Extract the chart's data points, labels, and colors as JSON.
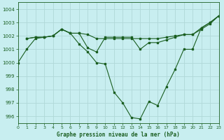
{
  "title": "Graphe pression niveau de la mer (hPa)",
  "background_color": "#c8eef0",
  "grid_color": "#b0d8d8",
  "line_color": "#1a5e20",
  "xlim": [
    0,
    23
  ],
  "ylim": [
    995.5,
    1004.5
  ],
  "yticks": [
    996,
    997,
    998,
    999,
    1000,
    1001,
    1002,
    1003,
    1004
  ],
  "xticks": [
    0,
    1,
    2,
    3,
    4,
    5,
    6,
    7,
    8,
    9,
    10,
    11,
    12,
    13,
    14,
    15,
    16,
    17,
    18,
    19,
    20,
    21,
    22,
    23
  ],
  "series1": {
    "x": [
      0,
      1,
      2,
      3,
      4,
      5,
      6,
      7,
      8,
      9,
      10,
      11,
      12,
      13,
      14,
      15,
      16,
      17,
      18,
      19,
      20,
      21,
      22,
      23
    ],
    "y": [
      1000.0,
      1001.0,
      1001.8,
      1001.9,
      1002.0,
      1002.5,
      1002.2,
      1001.4,
      1000.8,
      1000.0,
      999.9,
      997.8,
      997.0,
      995.9,
      995.8,
      997.1,
      996.8,
      998.2,
      999.5,
      1001.0,
      1001.0,
      1002.6,
      1003.0,
      1003.5
    ]
  },
  "series2": {
    "x": [
      1,
      2,
      3,
      4,
      5,
      6,
      7,
      8,
      9,
      10,
      11,
      12,
      13,
      14,
      15,
      16,
      17,
      18,
      19,
      20,
      21,
      22,
      23
    ],
    "y": [
      1001.8,
      1001.9,
      1001.9,
      1002.0,
      1002.5,
      1002.2,
      1002.2,
      1002.1,
      1001.8,
      1001.8,
      1001.8,
      1001.8,
      1001.8,
      1001.8,
      1001.8,
      1001.8,
      1001.9,
      1002.0,
      1002.1,
      1002.1,
      1002.6,
      1003.0,
      1003.5
    ]
  },
  "series3": {
    "x": [
      1,
      2,
      3,
      4,
      5,
      6,
      7,
      8,
      9,
      10,
      11,
      12,
      13,
      14,
      15,
      16,
      17,
      18,
      19,
      20,
      21,
      22,
      23
    ],
    "y": [
      1001.8,
      1001.9,
      1001.9,
      1002.0,
      1002.5,
      1002.2,
      1002.2,
      1001.1,
      1000.8,
      1001.9,
      1001.9,
      1001.9,
      1001.9,
      1001.0,
      1001.5,
      1001.5,
      1001.7,
      1001.9,
      1002.1,
      1002.1,
      1002.5,
      1002.9,
      1003.5
    ]
  }
}
